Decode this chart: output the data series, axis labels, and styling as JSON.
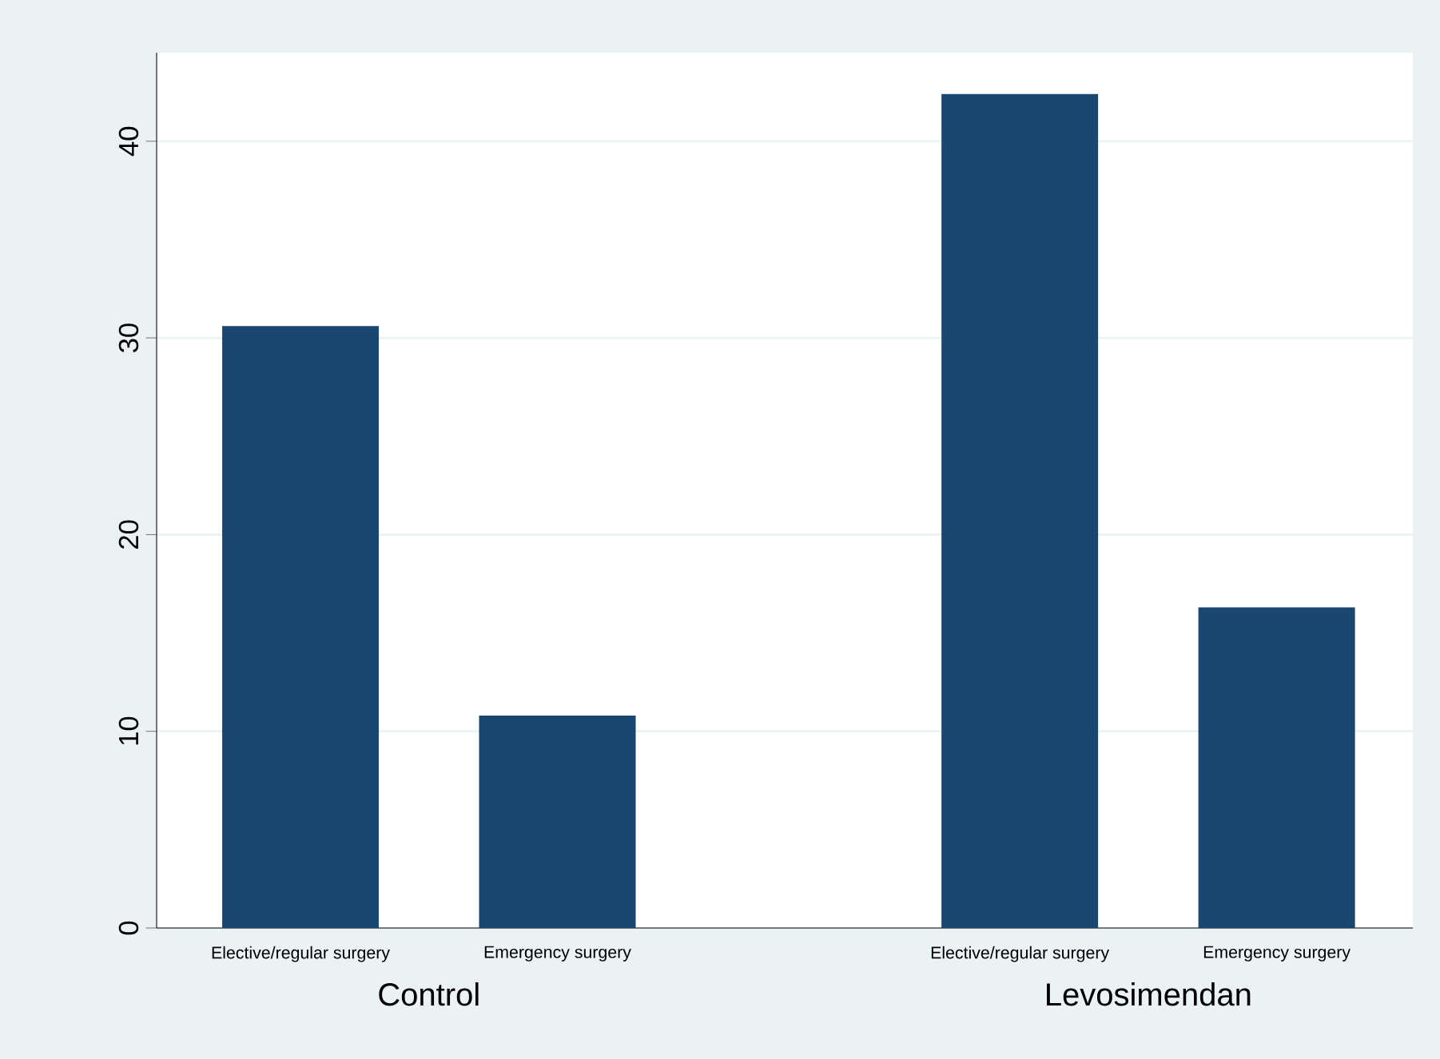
{
  "chart_data": {
    "type": "bar",
    "categories": [
      "Elective/regular surgery",
      "Emergency surgery",
      "Elective/regular surgery",
      "Emergency surgery"
    ],
    "values": [
      30.6,
      10.8,
      42.4,
      16.3
    ],
    "color": "#1a476f",
    "ylim": [
      0,
      44.5
    ],
    "yticks": [
      0,
      10,
      20,
      30,
      40
    ],
    "grid": "y",
    "annotations": [
      "Control",
      "Levosimendan"
    ]
  }
}
